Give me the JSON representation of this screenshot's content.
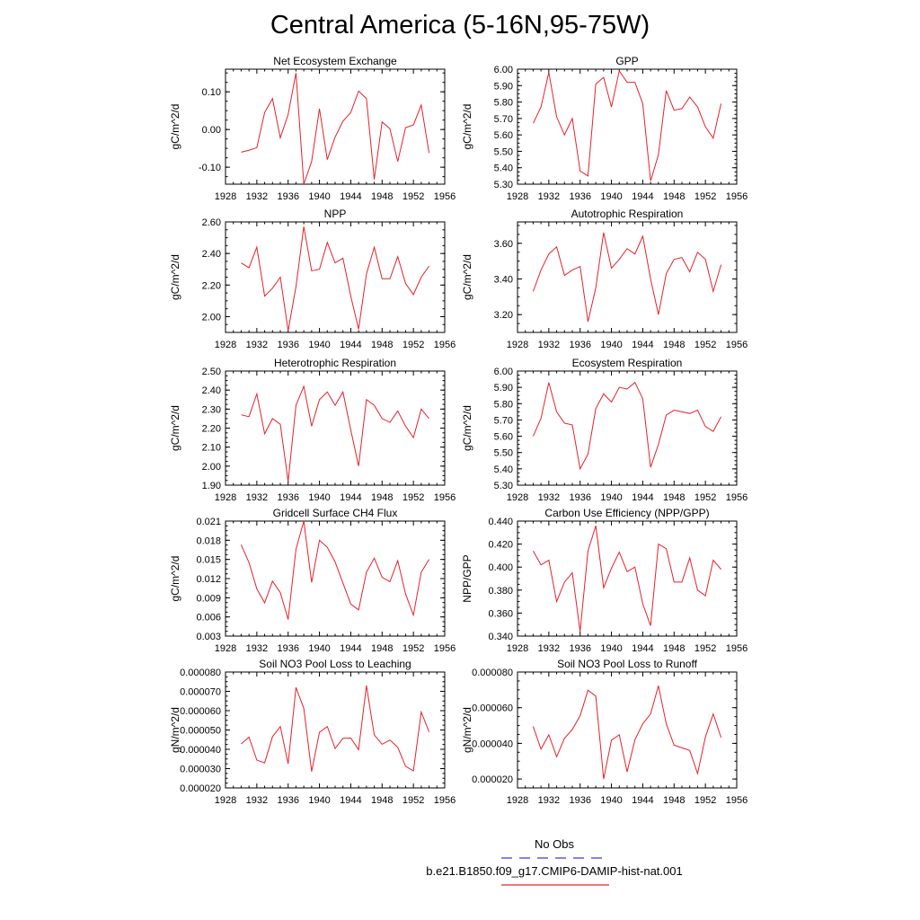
{
  "title": "Central America (5-16N,95-75W)",
  "legend": [
    {
      "label": "No Obs",
      "color": "#3a3ad8",
      "dash": true
    },
    {
      "label": "b.e21.B1850.f09_g17.CMIP6-DAMIP-hist-nat.001",
      "color": "#e8202a",
      "dash": false
    }
  ],
  "series_color": "#e8202a",
  "chart_data": [
    {
      "type": "line",
      "title": "Net Ecosystem Exchange",
      "ylabel": "gC/m^2/d",
      "xlim": [
        1928,
        1956
      ],
      "xticks": [
        1928,
        1932,
        1936,
        1940,
        1944,
        1948,
        1952,
        1956
      ],
      "ylim": [
        -0.145,
        0.16
      ],
      "yticks": [
        -0.1,
        0.0,
        0.1
      ],
      "ydec": 2,
      "x": [
        1930,
        1931,
        1932,
        1933,
        1934,
        1935,
        1936,
        1937,
        1938,
        1939,
        1940,
        1941,
        1942,
        1943,
        1944,
        1945,
        1946,
        1947,
        1948,
        1949,
        1950,
        1951,
        1952,
        1953,
        1954
      ],
      "y": [
        -0.06,
        -0.055,
        -0.048,
        0.045,
        0.082,
        -0.022,
        0.04,
        0.15,
        -0.145,
        -0.085,
        0.055,
        -0.08,
        -0.02,
        0.022,
        0.045,
        0.102,
        0.082,
        -0.132,
        0.02,
        0.002,
        -0.085,
        0.005,
        0.012,
        0.065,
        -0.062
      ]
    },
    {
      "type": "line",
      "title": "GPP",
      "ylabel": "gC/m^2/d",
      "xlim": [
        1928,
        1956
      ],
      "xticks": [
        1928,
        1932,
        1936,
        1940,
        1944,
        1948,
        1952,
        1956
      ],
      "ylim": [
        5.3,
        6.0
      ],
      "yticks": [
        5.3,
        5.4,
        5.5,
        5.6,
        5.7,
        5.8,
        5.9,
        6.0
      ],
      "ydec": 2,
      "x": [
        1930,
        1931,
        1932,
        1933,
        1934,
        1935,
        1936,
        1937,
        1938,
        1939,
        1940,
        1941,
        1942,
        1943,
        1944,
        1945,
        1946,
        1947,
        1948,
        1949,
        1950,
        1951,
        1952,
        1953,
        1954
      ],
      "y": [
        5.67,
        5.77,
        5.98,
        5.71,
        5.6,
        5.7,
        5.38,
        5.35,
        5.91,
        5.95,
        5.77,
        5.99,
        5.92,
        5.92,
        5.79,
        5.32,
        5.48,
        5.87,
        5.75,
        5.76,
        5.83,
        5.77,
        5.65,
        5.58,
        5.79
      ]
    },
    {
      "type": "line",
      "title": "NPP",
      "ylabel": "gC/m^2/d",
      "xlim": [
        1928,
        1956
      ],
      "xticks": [
        1928,
        1932,
        1936,
        1940,
        1944,
        1948,
        1952,
        1956
      ],
      "ylim": [
        1.9,
        2.6
      ],
      "yticks": [
        2.0,
        2.2,
        2.4,
        2.6
      ],
      "ydec": 2,
      "x": [
        1930,
        1931,
        1932,
        1933,
        1934,
        1935,
        1936,
        1937,
        1938,
        1939,
        1940,
        1941,
        1942,
        1943,
        1944,
        1945,
        1946,
        1947,
        1948,
        1949,
        1950,
        1951,
        1952,
        1953,
        1954
      ],
      "y": [
        2.34,
        2.31,
        2.44,
        2.13,
        2.18,
        2.25,
        1.91,
        2.19,
        2.57,
        2.29,
        2.3,
        2.47,
        2.34,
        2.37,
        2.13,
        1.92,
        2.27,
        2.44,
        2.24,
        2.24,
        2.38,
        2.21,
        2.14,
        2.25,
        2.32
      ]
    },
    {
      "type": "line",
      "title": "Autotrophic Respiration",
      "ylabel": "gC/m^2/d",
      "xlim": [
        1928,
        1956
      ],
      "xticks": [
        1928,
        1932,
        1936,
        1940,
        1944,
        1948,
        1952,
        1956
      ],
      "ylim": [
        3.1,
        3.72
      ],
      "yticks": [
        3.2,
        3.4,
        3.6
      ],
      "ydec": 2,
      "x": [
        1930,
        1931,
        1932,
        1933,
        1934,
        1935,
        1936,
        1937,
        1938,
        1939,
        1940,
        1941,
        1942,
        1943,
        1944,
        1945,
        1946,
        1947,
        1948,
        1949,
        1950,
        1951,
        1952,
        1953,
        1954
      ],
      "y": [
        3.33,
        3.45,
        3.54,
        3.58,
        3.42,
        3.45,
        3.47,
        3.16,
        3.35,
        3.66,
        3.46,
        3.51,
        3.57,
        3.54,
        3.64,
        3.4,
        3.2,
        3.43,
        3.51,
        3.52,
        3.44,
        3.55,
        3.51,
        3.33,
        3.48
      ]
    },
    {
      "type": "line",
      "title": "Heterotrophic Respiration",
      "ylabel": "gC/m^2/d",
      "xlim": [
        1928,
        1956
      ],
      "xticks": [
        1928,
        1932,
        1936,
        1940,
        1944,
        1948,
        1952,
        1956
      ],
      "ylim": [
        1.9,
        2.5
      ],
      "yticks": [
        1.9,
        2.0,
        2.1,
        2.2,
        2.3,
        2.4,
        2.5
      ],
      "ydec": 2,
      "x": [
        1930,
        1931,
        1932,
        1933,
        1934,
        1935,
        1936,
        1937,
        1938,
        1939,
        1940,
        1941,
        1942,
        1943,
        1944,
        1945,
        1946,
        1947,
        1948,
        1949,
        1950,
        1951,
        1952,
        1953,
        1954
      ],
      "y": [
        2.27,
        2.26,
        2.38,
        2.17,
        2.25,
        2.22,
        1.92,
        2.32,
        2.42,
        2.21,
        2.35,
        2.39,
        2.32,
        2.39,
        2.19,
        2.0,
        2.35,
        2.32,
        2.25,
        2.23,
        2.29,
        2.21,
        2.15,
        2.3,
        2.25
      ]
    },
    {
      "type": "line",
      "title": "Ecosystem Respiration",
      "ylabel": "gC/m^2/d",
      "xlim": [
        1928,
        1956
      ],
      "xticks": [
        1928,
        1932,
        1936,
        1940,
        1944,
        1948,
        1952,
        1956
      ],
      "ylim": [
        5.3,
        6.0
      ],
      "yticks": [
        5.3,
        5.4,
        5.5,
        5.6,
        5.7,
        5.8,
        5.9,
        6.0
      ],
      "ydec": 2,
      "x": [
        1930,
        1931,
        1932,
        1933,
        1934,
        1935,
        1936,
        1937,
        1938,
        1939,
        1940,
        1941,
        1942,
        1943,
        1944,
        1945,
        1946,
        1947,
        1948,
        1949,
        1950,
        1951,
        1952,
        1953,
        1954
      ],
      "y": [
        5.6,
        5.71,
        5.93,
        5.75,
        5.68,
        5.67,
        5.4,
        5.49,
        5.77,
        5.86,
        5.81,
        5.9,
        5.89,
        5.93,
        5.83,
        5.41,
        5.55,
        5.73,
        5.76,
        5.75,
        5.74,
        5.76,
        5.66,
        5.63,
        5.72
      ]
    },
    {
      "type": "line",
      "title": "Gridcell Surface CH4 Flux",
      "ylabel": "gC/m^2/d",
      "xlim": [
        1928,
        1956
      ],
      "xticks": [
        1928,
        1932,
        1936,
        1940,
        1944,
        1948,
        1952,
        1956
      ],
      "ylim": [
        0.003,
        0.021
      ],
      "yticks": [
        0.003,
        0.006,
        0.009,
        0.012,
        0.015,
        0.018,
        0.021
      ],
      "ydec": 3,
      "x": [
        1930,
        1931,
        1932,
        1933,
        1934,
        1935,
        1936,
        1937,
        1938,
        1939,
        1940,
        1941,
        1942,
        1943,
        1944,
        1945,
        1946,
        1947,
        1948,
        1949,
        1950,
        1951,
        1952,
        1953,
        1954
      ],
      "y": [
        0.0173,
        0.0145,
        0.0104,
        0.0082,
        0.0116,
        0.0098,
        0.0056,
        0.0166,
        0.021,
        0.0114,
        0.018,
        0.0169,
        0.0146,
        0.0113,
        0.008,
        0.0071,
        0.013,
        0.0152,
        0.0122,
        0.0115,
        0.0148,
        0.0096,
        0.0063,
        0.013,
        0.015
      ]
    },
    {
      "type": "line",
      "title": "Carbon Use Efficiency (NPP/GPP)",
      "ylabel": "NPP/GPP",
      "xlim": [
        1928,
        1956
      ],
      "xticks": [
        1928,
        1932,
        1936,
        1940,
        1944,
        1948,
        1952,
        1956
      ],
      "ylim": [
        0.34,
        0.44
      ],
      "yticks": [
        0.34,
        0.36,
        0.38,
        0.4,
        0.42,
        0.44
      ],
      "ydec": 3,
      "x": [
        1930,
        1931,
        1932,
        1933,
        1934,
        1935,
        1936,
        1937,
        1938,
        1939,
        1940,
        1941,
        1942,
        1943,
        1944,
        1945,
        1946,
        1947,
        1948,
        1949,
        1950,
        1951,
        1952,
        1953,
        1954
      ],
      "y": [
        0.414,
        0.402,
        0.406,
        0.37,
        0.387,
        0.395,
        0.344,
        0.414,
        0.436,
        0.382,
        0.399,
        0.413,
        0.396,
        0.4,
        0.368,
        0.349,
        0.42,
        0.416,
        0.387,
        0.387,
        0.408,
        0.38,
        0.375,
        0.406,
        0.398
      ]
    },
    {
      "type": "line",
      "title": "Soil NO3 Pool Loss to Leaching",
      "ylabel": "gN/m^2/d",
      "xlim": [
        1928,
        1956
      ],
      "xticks": [
        1928,
        1932,
        1936,
        1940,
        1944,
        1948,
        1952,
        1956
      ],
      "ylim": [
        2e-05,
        8e-05
      ],
      "yticks": [
        2e-05,
        3e-05,
        4e-05,
        5e-05,
        6e-05,
        7e-05,
        8e-05
      ],
      "ydec": 6,
      "x": [
        1930,
        1931,
        1932,
        1933,
        1934,
        1935,
        1936,
        1937,
        1938,
        1939,
        1940,
        1941,
        1942,
        1943,
        1944,
        1945,
        1946,
        1947,
        1948,
        1949,
        1950,
        1951,
        1952,
        1953,
        1954
      ],
      "y": [
        4.28e-05,
        4.63e-05,
        3.44e-05,
        3.3e-05,
        4.65e-05,
        5.18e-05,
        3.25e-05,
        7.2e-05,
        6.12e-05,
        2.85e-05,
        4.88e-05,
        5.18e-05,
        4.04e-05,
        4.57e-05,
        4.58e-05,
        3.98e-05,
        7.3e-05,
        4.74e-05,
        4.26e-05,
        4.48e-05,
        4.1e-05,
        3.12e-05,
        2.88e-05,
        5.93e-05,
        4.9e-05
      ]
    },
    {
      "type": "line",
      "title": "Soil NO3 Pool Loss to Runoff",
      "ylabel": "gN/m^2/d",
      "xlim": [
        1928,
        1956
      ],
      "xticks": [
        1928,
        1932,
        1936,
        1940,
        1944,
        1948,
        1952,
        1956
      ],
      "ylim": [
        1.5e-05,
        8e-05
      ],
      "yticks": [
        2e-05,
        4e-05,
        6e-05,
        8e-05
      ],
      "ydec": 6,
      "x": [
        1930,
        1931,
        1932,
        1933,
        1934,
        1935,
        1936,
        1937,
        1938,
        1939,
        1940,
        1941,
        1942,
        1943,
        1944,
        1945,
        1946,
        1947,
        1948,
        1949,
        1950,
        1951,
        1952,
        1953,
        1954
      ],
      "y": [
        4.95e-05,
        3.68e-05,
        4.48e-05,
        3.25e-05,
        4.28e-05,
        4.78e-05,
        5.55e-05,
        6.98e-05,
        6.65e-05,
        2e-05,
        4.18e-05,
        4.48e-05,
        2.4e-05,
        4.2e-05,
        5.1e-05,
        5.65e-05,
        7.23e-05,
        5.1e-05,
        3.9e-05,
        3.75e-05,
        3.6e-05,
        2.3e-05,
        4.35e-05,
        5.65e-05,
        4.32e-05
      ]
    }
  ]
}
